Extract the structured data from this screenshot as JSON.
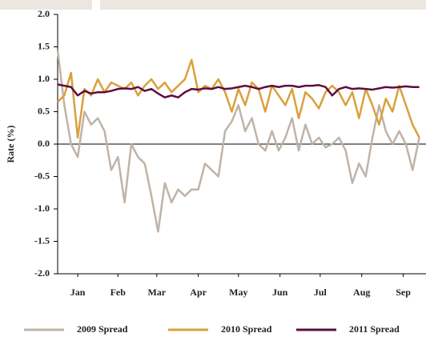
{
  "chart_data": {
    "type": "line",
    "y_label": "Rate (%)",
    "x": [
      0,
      5,
      10,
      15,
      20,
      25,
      30,
      35,
      40,
      45,
      50,
      55,
      60,
      65,
      70,
      75,
      80,
      85,
      90,
      95,
      100,
      105,
      110,
      115,
      120,
      125,
      130,
      135,
      140,
      145,
      150,
      155,
      160,
      165,
      170,
      175,
      180,
      185,
      190,
      195,
      200,
      205,
      210,
      215,
      220,
      225,
      230,
      235,
      240,
      245,
      250,
      255,
      260,
      265,
      270
    ],
    "xlim": [
      0,
      275
    ],
    "xticks": [
      {
        "value": 15,
        "label": "Jan"
      },
      {
        "value": 45,
        "label": "Feb"
      },
      {
        "value": 74,
        "label": "Mar"
      },
      {
        "value": 105,
        "label": "Apr"
      },
      {
        "value": 135,
        "label": "May"
      },
      {
        "value": 166,
        "label": "Jun"
      },
      {
        "value": 196,
        "label": "Jul"
      },
      {
        "value": 227,
        "label": "Aug"
      },
      {
        "value": 258,
        "label": "Sep"
      }
    ],
    "ylim": [
      -2,
      2
    ],
    "yticks": [
      {
        "value": 2,
        "label": "2.0"
      },
      1.5,
      {
        "value": 1,
        "label": "1.0"
      },
      0.5,
      {
        "value": 0,
        "label": "0.0"
      },
      -0.5,
      {
        "value": -1,
        "label": "-1.0"
      },
      -1.5,
      {
        "value": -2,
        "label": "-2.0"
      }
    ],
    "series": [
      {
        "name": "2009 Spread",
        "color": "#bfb3a8",
        "values": [
          1.45,
          0.6,
          0.0,
          -0.2,
          0.5,
          0.3,
          0.4,
          0.2,
          -0.4,
          -0.2,
          -0.9,
          0.0,
          -0.2,
          -0.3,
          -0.8,
          -1.35,
          -0.6,
          -0.9,
          -0.7,
          -0.8,
          -0.7,
          -0.7,
          -0.3,
          -0.4,
          -0.5,
          0.2,
          0.35,
          0.6,
          0.2,
          0.4,
          0.0,
          -0.1,
          0.2,
          -0.1,
          0.1,
          0.4,
          -0.1,
          0.3,
          0.0,
          0.1,
          -0.05,
          0.0,
          0.1,
          -0.1,
          -0.6,
          -0.3,
          -0.5,
          0.1,
          0.6,
          0.2,
          0.0,
          0.2,
          0.0,
          -0.4,
          0.1
        ]
      },
      {
        "name": "2010 Spread",
        "color": "#d9a03c",
        "values": [
          0.65,
          0.75,
          1.1,
          0.1,
          0.85,
          0.75,
          1.0,
          0.8,
          0.95,
          0.9,
          0.85,
          0.95,
          0.75,
          0.9,
          1.0,
          0.85,
          0.95,
          0.8,
          0.9,
          1.0,
          1.3,
          0.8,
          0.9,
          0.85,
          1.0,
          0.8,
          0.5,
          0.85,
          0.6,
          0.95,
          0.85,
          0.5,
          0.9,
          0.75,
          0.6,
          0.85,
          0.4,
          0.8,
          0.7,
          0.55,
          0.8,
          0.9,
          0.8,
          0.6,
          0.8,
          0.4,
          0.85,
          0.6,
          0.3,
          0.7,
          0.5,
          0.9,
          0.6,
          0.3,
          0.1
        ]
      },
      {
        "name": "2011 Spread",
        "color": "#5e0d3e",
        "values": [
          0.92,
          0.9,
          0.88,
          0.75,
          0.82,
          0.78,
          0.8,
          0.8,
          0.82,
          0.85,
          0.86,
          0.85,
          0.88,
          0.82,
          0.85,
          0.78,
          0.72,
          0.75,
          0.72,
          0.8,
          0.85,
          0.84,
          0.86,
          0.85,
          0.88,
          0.85,
          0.86,
          0.88,
          0.9,
          0.88,
          0.85,
          0.88,
          0.9,
          0.88,
          0.9,
          0.9,
          0.88,
          0.9,
          0.9,
          0.91,
          0.88,
          0.75,
          0.85,
          0.88,
          0.85,
          0.86,
          0.85,
          0.84,
          0.86,
          0.88,
          0.87,
          0.88,
          0.89,
          0.88,
          0.88
        ]
      }
    ]
  }
}
